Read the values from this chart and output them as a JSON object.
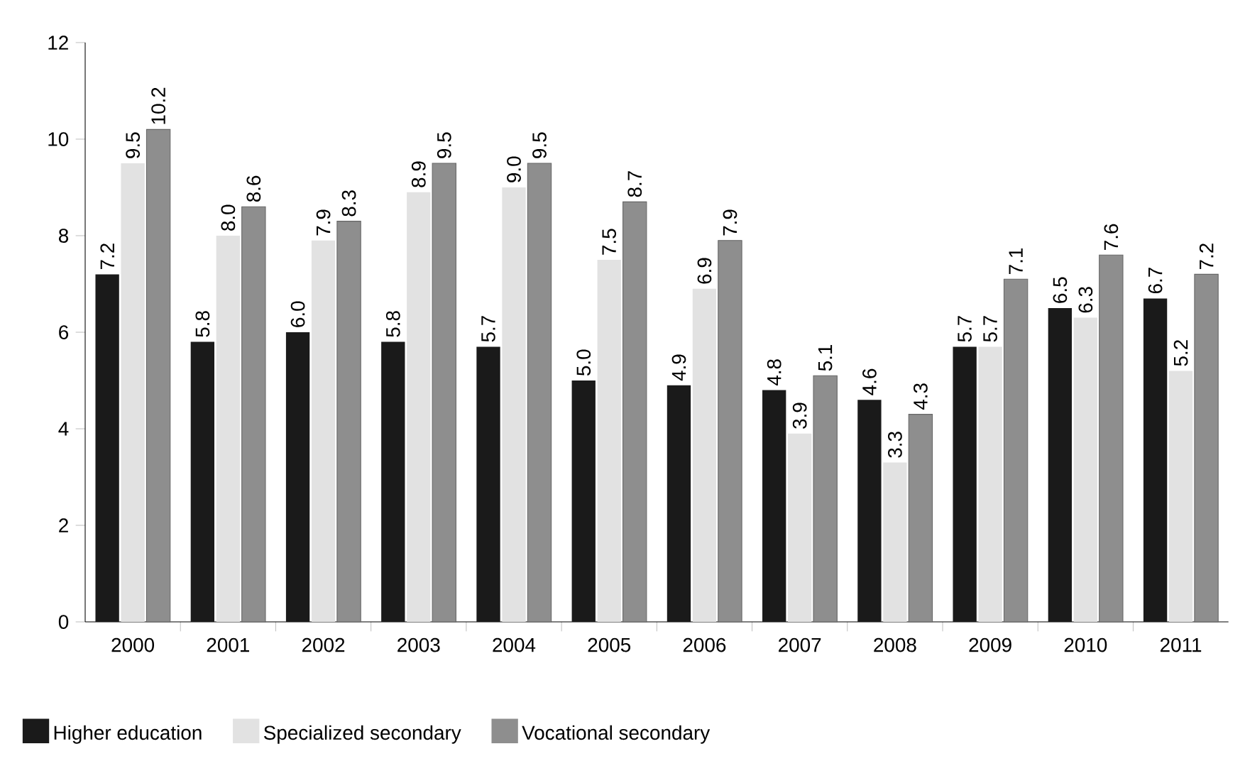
{
  "chart_data": {
    "type": "bar",
    "categories": [
      "2000",
      "2001",
      "2002",
      "2003",
      "2004",
      "2005",
      "2006",
      "2007",
      "2008",
      "2009",
      "2010",
      "2011"
    ],
    "series": [
      {
        "name": "Higher education",
        "color": "#1a1a1a",
        "values": [
          7.2,
          5.8,
          6.0,
          5.8,
          5.7,
          5.0,
          4.9,
          4.8,
          4.6,
          5.7,
          6.5,
          6.7
        ],
        "value_labels": [
          "7.2",
          "5.8",
          "6.0",
          "5.8",
          "5.7",
          "5.0",
          "4.9",
          "4.8",
          "4.6",
          "5.7",
          "6.5",
          "6.7"
        ]
      },
      {
        "name": "Specialized secondary",
        "color": "#e2e2e2",
        "values": [
          9.5,
          8.0,
          7.9,
          8.9,
          9.0,
          7.5,
          6.9,
          3.9,
          3.3,
          5.7,
          6.3,
          5.2
        ],
        "value_labels": [
          "9.5",
          "8.0",
          "7.9",
          "8.9",
          "9.0",
          "7.5",
          "6.9",
          "3.9",
          "3.3",
          "5.7",
          "6.3",
          "5.2"
        ]
      },
      {
        "name": "Vocational secondary",
        "color": "#8e8e8e",
        "values": [
          10.2,
          8.6,
          8.3,
          9.5,
          9.5,
          8.7,
          7.9,
          5.1,
          4.3,
          7.1,
          7.6,
          7.2
        ],
        "value_labels": [
          "10.2",
          "8.6",
          "8.3",
          "9.5",
          "9.5",
          "8.7",
          "7.9",
          "5.1",
          "4.3",
          "7.1",
          "7.6",
          "7.2"
        ]
      }
    ],
    "ylim": [
      0,
      12
    ],
    "yticks": [
      0,
      2,
      4,
      6,
      8,
      10,
      12
    ],
    "grid": false,
    "legend": "bottom left"
  }
}
